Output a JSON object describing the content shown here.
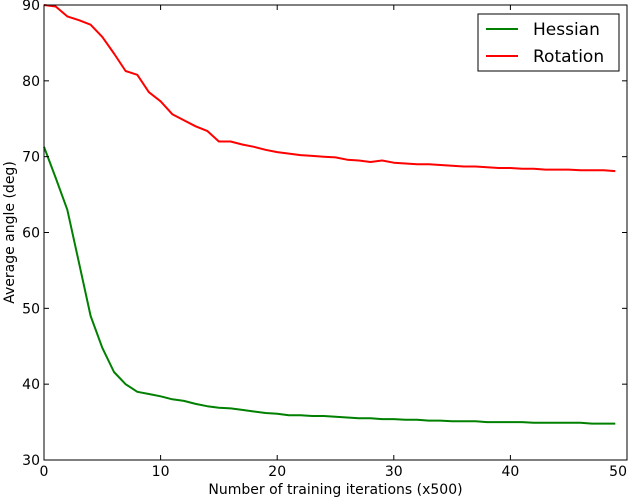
{
  "chart_data": {
    "type": "line",
    "xlabel": "Number of training iterations (x500)",
    "ylabel": "Average angle (deg)",
    "xlim": [
      0,
      50
    ],
    "ylim": [
      30,
      90
    ],
    "xticks": [
      0,
      10,
      20,
      30,
      40,
      50
    ],
    "yticks": [
      30,
      40,
      50,
      60,
      70,
      80,
      90
    ],
    "grid": false,
    "legend_position": "top-right",
    "series": [
      {
        "name": "Hessian",
        "color": "#008000",
        "x": [
          0,
          1,
          2,
          3,
          4,
          5,
          6,
          7,
          8,
          9,
          10,
          11,
          12,
          13,
          14,
          15,
          16,
          17,
          18,
          19,
          20,
          21,
          22,
          23,
          24,
          25,
          26,
          27,
          28,
          29,
          30,
          31,
          32,
          33,
          34,
          35,
          36,
          37,
          38,
          39,
          40,
          41,
          42,
          43,
          44,
          45,
          46,
          47,
          48,
          49
        ],
        "y": [
          71.3,
          67.2,
          63.0,
          56.0,
          49.0,
          44.8,
          41.6,
          40.0,
          39.0,
          38.7,
          38.4,
          38.0,
          37.8,
          37.4,
          37.1,
          36.9,
          36.8,
          36.6,
          36.4,
          36.2,
          36.1,
          35.9,
          35.9,
          35.8,
          35.8,
          35.7,
          35.6,
          35.5,
          35.5,
          35.4,
          35.4,
          35.3,
          35.3,
          35.2,
          35.2,
          35.1,
          35.1,
          35.1,
          35.0,
          35.0,
          35.0,
          35.0,
          34.9,
          34.9,
          34.9,
          34.9,
          34.9,
          34.8,
          34.8,
          34.8
        ]
      },
      {
        "name": "Rotation",
        "color": "#ff0000",
        "x": [
          0,
          1,
          2,
          3,
          4,
          5,
          6,
          7,
          8,
          9,
          10,
          11,
          12,
          13,
          14,
          15,
          16,
          17,
          18,
          19,
          20,
          21,
          22,
          23,
          24,
          25,
          26,
          27,
          28,
          29,
          30,
          31,
          32,
          33,
          34,
          35,
          36,
          37,
          38,
          39,
          40,
          41,
          42,
          43,
          44,
          45,
          46,
          47,
          48,
          49
        ],
        "y": [
          90.0,
          89.8,
          88.5,
          88.0,
          87.4,
          85.8,
          83.6,
          81.3,
          80.8,
          78.5,
          77.3,
          75.6,
          74.8,
          74.0,
          73.4,
          72.0,
          72.0,
          71.6,
          71.3,
          70.9,
          70.6,
          70.4,
          70.2,
          70.1,
          70.0,
          69.9,
          69.6,
          69.5,
          69.3,
          69.5,
          69.2,
          69.1,
          69.0,
          69.0,
          68.9,
          68.8,
          68.7,
          68.7,
          68.6,
          68.5,
          68.5,
          68.4,
          68.4,
          68.3,
          68.3,
          68.3,
          68.2,
          68.2,
          68.2,
          68.1
        ]
      }
    ]
  }
}
